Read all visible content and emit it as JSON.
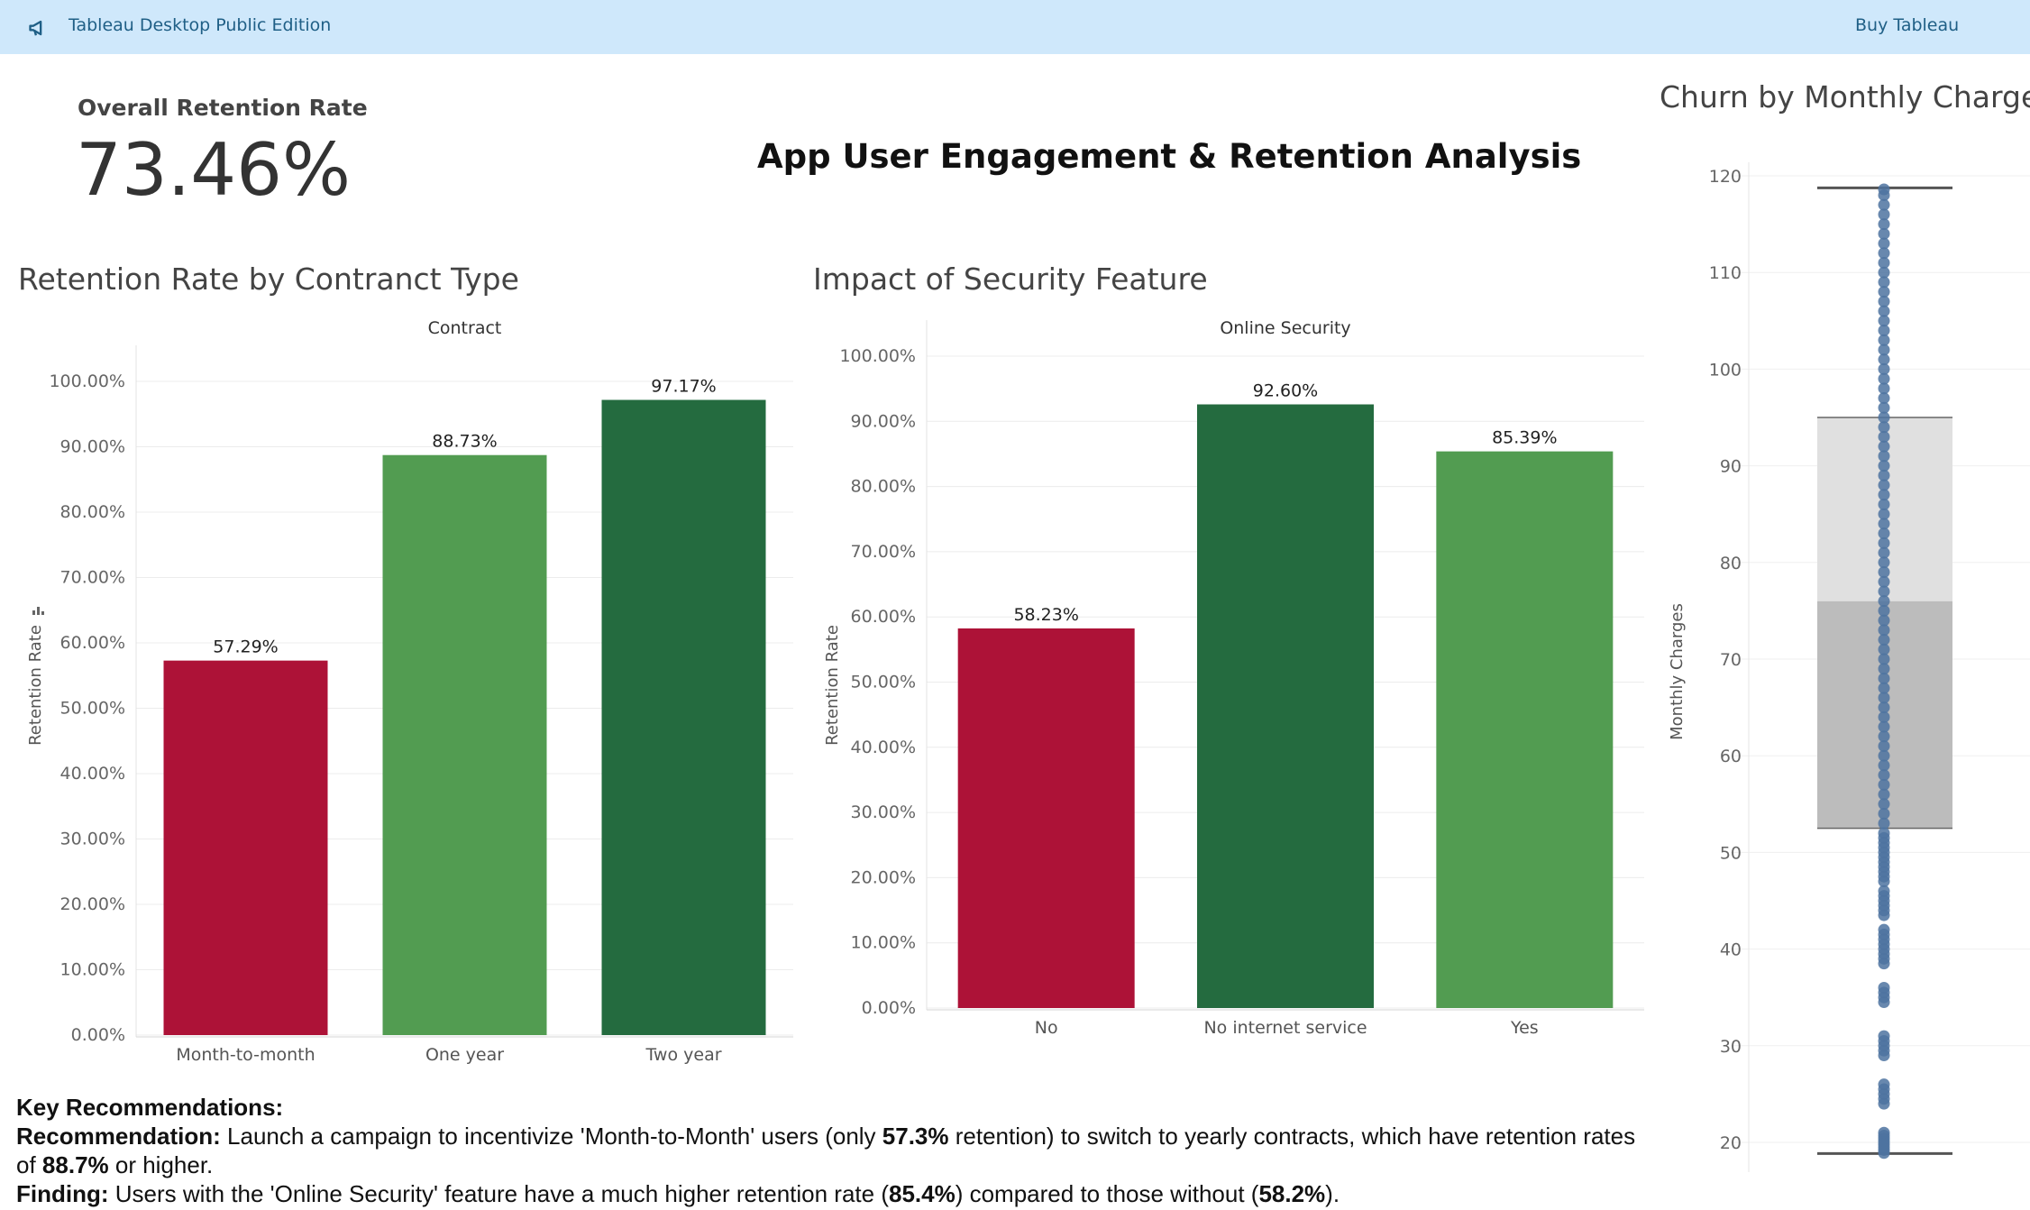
{
  "topbar": {
    "edition_label": "Tableau Desktop Public Edition",
    "buy_label": "Buy Tableau"
  },
  "kpi": {
    "label": "Overall Retention Rate",
    "value": "73.46%"
  },
  "dashboard_title": "App User Engagement & Retention Analysis",
  "colors": {
    "red": "#ad1237",
    "light_green": "#529c51",
    "dark_green": "#246b3f",
    "blue": "#4e73a0",
    "box_upper": "#e0e0e0",
    "box_lower": "#bcbcbc"
  },
  "chart_data": [
    {
      "type": "bar",
      "title": "Retention Rate by Contranct Type",
      "header": "Contract",
      "ylabel": "Retention Rate",
      "categories": [
        "Month-to-month",
        "One year",
        "Two year"
      ],
      "values": [
        57.29,
        88.73,
        97.17
      ],
      "value_labels": [
        "57.29%",
        "88.73%",
        "97.17%"
      ],
      "bar_colors": [
        "red",
        "light_green",
        "dark_green"
      ],
      "ylim": [
        0,
        100
      ],
      "ticks": [
        "0.00%",
        "10.00%",
        "20.00%",
        "30.00%",
        "40.00%",
        "50.00%",
        "60.00%",
        "70.00%",
        "80.00%",
        "90.00%",
        "100.00%"
      ]
    },
    {
      "type": "bar",
      "title": "Impact of Security Feature",
      "header": "Online Security",
      "ylabel": "Retention Rate",
      "categories": [
        "No",
        "No internet service",
        "Yes"
      ],
      "values": [
        58.23,
        92.6,
        85.39
      ],
      "value_labels": [
        "58.23%",
        "92.60%",
        "85.39%"
      ],
      "bar_colors": [
        "red",
        "dark_green",
        "light_green"
      ],
      "ylim": [
        0,
        100
      ],
      "ticks": [
        "0.00%",
        "10.00%",
        "20.00%",
        "30.00%",
        "40.00%",
        "50.00%",
        "60.00%",
        "70.00%",
        "80.00%",
        "90.00%",
        "100.00%"
      ]
    },
    {
      "type": "boxplot",
      "title": "Churn by Monthly Charges",
      "ylabel": "Monthly Charges",
      "ylim": [
        17,
        121
      ],
      "ticks": [
        20,
        30,
        40,
        50,
        60,
        70,
        80,
        90,
        100,
        110,
        120
      ],
      "whisker_low": 18.85,
      "q1": 52.5,
      "median": 76,
      "q3": 95,
      "whisker_high": 118.75,
      "points": [
        18.9,
        19.2,
        19.5,
        19.8,
        20.1,
        20.4,
        20.7,
        21.0,
        24.0,
        24.5,
        25.0,
        25.5,
        26.0,
        29.0,
        29.5,
        30.0,
        30.5,
        31.0,
        34.5,
        35.0,
        35.5,
        36.0,
        38.5,
        39.0,
        39.5,
        40.0,
        40.5,
        41.0,
        41.5,
        42.0,
        43.5,
        44.0,
        44.5,
        45.0,
        45.5,
        46.0,
        47.0,
        47.5,
        48.0,
        48.5,
        49.0,
        49.5,
        50.0,
        50.5,
        51.0,
        51.5,
        52.0,
        53.0,
        54.0,
        55.0,
        56.0,
        57.0,
        58.0,
        59.0,
        60.0,
        61.0,
        62.0,
        63.0,
        64.0,
        65.0,
        66.0,
        67.0,
        68.0,
        69.0,
        70.0,
        71.0,
        72.0,
        73.0,
        74.0,
        75.0,
        76.0,
        77.0,
        78.0,
        79.0,
        80.0,
        81.0,
        82.0,
        83.0,
        84.0,
        85.0,
        86.0,
        87.0,
        88.0,
        89.0,
        90.0,
        91.0,
        92.0,
        93.0,
        94.0,
        95.0,
        96.0,
        97.0,
        98.0,
        99.0,
        100.0,
        101.0,
        102.0,
        103.0,
        104.0,
        105.0,
        106.0,
        107.0,
        108.0,
        109.0,
        110.0,
        111.0,
        112.0,
        113.0,
        114.0,
        115.0,
        116.0,
        117.0,
        118.0,
        118.6
      ]
    }
  ],
  "recommendations": {
    "heading": "Key Recommendations:",
    "rec_label": "Recommendation:",
    "rec_text_1": " Launch a campaign to incentivize 'Month-to-Month' users (only ",
    "rec_bold_1": "57.3%",
    "rec_text_2": " retention) to switch to yearly contracts, which have retention rates of ",
    "rec_bold_2": "88.7%",
    "rec_text_3": " or higher.",
    "finding_label": "Finding:",
    "finding_text_1": " Users with the 'Online Security' feature have a much higher retention rate (",
    "finding_bold_1": "85.4%",
    "finding_text_2": ") compared to those without (",
    "finding_bold_2": "58.2%",
    "finding_text_3": ")."
  }
}
